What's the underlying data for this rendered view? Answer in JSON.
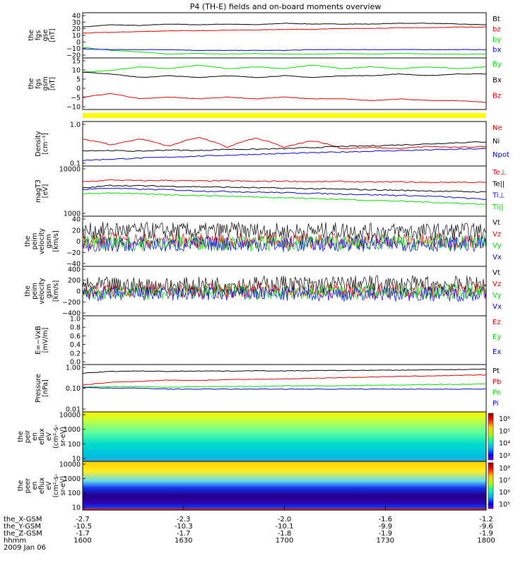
{
  "title": "P4 (TH-E) fields and on-board moments overview",
  "colors": {
    "black": "#000000",
    "red": "#e00000",
    "green": "#00dd00",
    "blue": "#0000dd",
    "yellow": "#ffff00"
  },
  "chart_data": [
    {
      "type": "line",
      "panel": "fgs_gse",
      "ylabel": [
        "the",
        "fgs",
        "gse",
        "[nT]"
      ],
      "yticks": [
        "40",
        "30",
        "20",
        "10",
        "0",
        "−10",
        "−20"
      ],
      "ylim": [
        -20,
        40
      ],
      "series": [
        {
          "name": "Bt",
          "color": "black",
          "y": [
            21,
            24,
            23,
            25,
            24,
            25,
            24,
            26,
            25,
            25,
            25,
            26,
            26,
            25,
            24
          ]
        },
        {
          "name": "bz",
          "color": "red",
          "y": [
            13,
            14,
            15,
            16,
            16,
            17,
            17,
            18,
            18,
            19,
            19,
            20,
            20,
            21,
            21
          ]
        },
        {
          "name": "by",
          "color": "green",
          "y": [
            -6,
            -10,
            -12,
            -15,
            -14,
            -15,
            -14,
            -15,
            -15,
            -14,
            -15,
            -14,
            -15,
            -15,
            -15
          ]
        },
        {
          "name": "bx",
          "color": "blue",
          "y": [
            -8,
            -9,
            -9,
            -9,
            -10,
            -10,
            -10,
            -10,
            -9,
            -9,
            -9,
            -9,
            -9,
            -9,
            -9
          ]
        }
      ]
    },
    {
      "type": "line",
      "panel": "fgs_gsm",
      "ylabel": [
        "the",
        "fgs",
        "gsm",
        "[nT]"
      ],
      "yticks": [
        "15",
        "10",
        "5",
        "0",
        "−5",
        "−10"
      ],
      "ylim": [
        -12,
        17
      ],
      "series": [
        {
          "name": "By",
          "color": "green",
          "y": [
            9,
            10,
            12,
            11,
            13,
            11,
            12,
            11,
            13,
            11,
            12,
            11,
            12,
            11,
            12
          ]
        },
        {
          "name": "Bx",
          "color": "black",
          "y": [
            9,
            8,
            6,
            7,
            6,
            7,
            6,
            7,
            6,
            7,
            7,
            8,
            7,
            8,
            8
          ]
        },
        {
          "name": "Bz",
          "color": "red",
          "y": [
            -5,
            -3,
            -6,
            -5,
            -6,
            -5,
            -6,
            -5,
            -6,
            -6,
            -7,
            -6,
            -7,
            -7,
            -8
          ]
        }
      ]
    },
    {
      "type": "line",
      "panel": "density",
      "ylabel": [
        "Density",
        "[cm⁻³]"
      ],
      "yticks": [
        "1.0",
        "0.1"
      ],
      "ylim": [
        0.1,
        1.4
      ],
      "scale": "log",
      "series": [
        {
          "name": "Ne",
          "color": "red",
          "y": [
            0.5,
            0.35,
            0.5,
            0.32,
            0.55,
            0.3,
            0.52,
            0.3,
            0.45,
            0.28,
            0.3,
            0.28,
            0.32,
            0.3,
            0.32
          ]
        },
        {
          "name": "Ni",
          "color": "black",
          "y": [
            0.25,
            0.25,
            0.24,
            0.26,
            0.25,
            0.27,
            0.27,
            0.28,
            0.3,
            0.32,
            0.33,
            0.35,
            0.37,
            0.4,
            0.42
          ]
        },
        {
          "name": "Npot",
          "color": "blue",
          "y": [
            0.14,
            0.15,
            0.16,
            0.17,
            0.18,
            0.19,
            0.2,
            0.21,
            0.22,
            0.23,
            0.24,
            0.25,
            0.26,
            0.27,
            0.28
          ]
        }
      ]
    },
    {
      "type": "line",
      "panel": "temperature",
      "ylabel": [
        "magT3",
        "[eV]"
      ],
      "yticks": [
        "10000",
        "1000"
      ],
      "ylim": [
        1000,
        12000
      ],
      "scale": "log",
      "legend": [
        "Te⊥",
        "Te||",
        "Ti⊥",
        "Ti||"
      ],
      "series": [
        {
          "name": "Te⊥",
          "color": "red",
          "y": [
            5500,
            6000,
            5800,
            5900,
            5700,
            5800,
            5600,
            5700,
            5500,
            5600,
            5400,
            5500,
            5300,
            5400,
            5300
          ]
        },
        {
          "name": "Te||",
          "color": "black",
          "y": [
            4000,
            4600,
            4500,
            4400,
            4300,
            4200,
            4100,
            4000,
            3900,
            3800,
            3700,
            3600,
            3500,
            3400,
            3300
          ]
        },
        {
          "name": "Ti⊥",
          "color": "blue",
          "y": [
            3800,
            4000,
            3800,
            3700,
            3500,
            3400,
            3300,
            3200,
            3100,
            3000,
            2900,
            2800,
            2700,
            2500,
            2300
          ]
        },
        {
          "name": "Ti||",
          "color": "green",
          "y": [
            3000,
            3200,
            3000,
            2900,
            2800,
            2700,
            2600,
            2500,
            2400,
            2300,
            2200,
            2100,
            2000,
            1900,
            1800
          ]
        }
      ]
    },
    {
      "type": "line",
      "panel": "peim_velocity",
      "ylabel": [
        "the",
        "peim",
        "velocity",
        "gsm",
        "[km/s]"
      ],
      "yticks": [
        "40",
        "20",
        "0",
        "−20",
        "−40"
      ],
      "ylim": [
        -40,
        40
      ],
      "series": [
        {
          "name": "Vt",
          "color": "black",
          "y": [
            15,
            18,
            16,
            17,
            15,
            17,
            16,
            15,
            16,
            17,
            15,
            16,
            15,
            16,
            15
          ]
        },
        {
          "name": "Vz",
          "color": "red",
          "y": [
            0,
            2,
            1,
            0,
            1,
            0,
            1,
            2,
            0,
            1,
            0,
            1,
            0,
            1,
            0
          ]
        },
        {
          "name": "Vy",
          "color": "green",
          "y": [
            -3,
            -2,
            -4,
            -3,
            -2,
            -3,
            -4,
            -3,
            -2,
            -3,
            -2,
            -3,
            -2,
            -3,
            -2
          ]
        },
        {
          "name": "Vx",
          "color": "blue",
          "y": [
            -5,
            -6,
            -5,
            -6,
            -5,
            -4,
            -5,
            -6,
            -5,
            -4,
            -5,
            -4,
            -5,
            -4,
            -5
          ]
        }
      ]
    },
    {
      "type": "line",
      "panel": "peim_velocity_2",
      "ylabel": [
        "the",
        "peim",
        "velocity",
        "gsm",
        "[km/s]"
      ],
      "yticks": [
        "400",
        "200",
        "0",
        "−200",
        "−400"
      ],
      "ylim": [
        -400,
        400
      ],
      "series": [
        {
          "name": "Vt",
          "color": "black",
          "y": [
            80,
            90,
            85,
            80,
            90,
            110,
            100,
            120,
            100,
            110,
            120,
            100,
            110,
            100,
            120
          ]
        },
        {
          "name": "Vz",
          "color": "red",
          "y": [
            0,
            10,
            0,
            10,
            0,
            10,
            0,
            10,
            0,
            10,
            0,
            10,
            0,
            10,
            0
          ]
        },
        {
          "name": "Vy",
          "color": "green",
          "y": [
            -20,
            -10,
            -20,
            -10,
            -20,
            -10,
            -20,
            -10,
            -20,
            -10,
            -20,
            -10,
            -20,
            -10,
            -20
          ]
        },
        {
          "name": "Vx",
          "color": "blue",
          "y": [
            -40,
            -50,
            -40,
            -50,
            -40,
            -50,
            -40,
            -50,
            -40,
            -50,
            -40,
            -50,
            -40,
            -50,
            -40
          ]
        }
      ]
    },
    {
      "type": "line",
      "panel": "efield",
      "ylabel": [
        "E=−VxB",
        "[mV/m]"
      ],
      "yticks": [
        "1.0",
        "0.8",
        "0.6",
        "0.4",
        "0.2",
        "0.0"
      ],
      "ylim": [
        0,
        1
      ],
      "series": [
        {
          "name": "Ez",
          "color": "red",
          "y": []
        },
        {
          "name": "Ey",
          "color": "green",
          "y": []
        },
        {
          "name": "Ex",
          "color": "blue",
          "y": []
        }
      ]
    },
    {
      "type": "line",
      "panel": "pressure",
      "ylabel": [
        "Pressure",
        "[nPa]"
      ],
      "yticks": [
        "1.00",
        "0.10",
        "0.01"
      ],
      "ylim": [
        0.01,
        1.2
      ],
      "scale": "log",
      "series": [
        {
          "name": "Pt",
          "color": "black",
          "y": [
            0.5,
            0.6,
            0.62,
            0.6,
            0.63,
            0.62,
            0.64,
            0.63,
            0.65,
            0.66,
            0.67,
            0.68,
            0.7,
            0.72,
            0.75
          ]
        },
        {
          "name": "Pb",
          "color": "red",
          "y": [
            0.15,
            0.2,
            0.22,
            0.25,
            0.24,
            0.26,
            0.27,
            0.28,
            0.3,
            0.32,
            0.34,
            0.36,
            0.38,
            0.4,
            0.42
          ]
        },
        {
          "name": "Pe",
          "color": "green",
          "y": [
            0.12,
            0.13,
            0.13,
            0.12,
            0.13,
            0.13,
            0.13,
            0.14,
            0.14,
            0.14,
            0.15,
            0.15,
            0.16,
            0.16,
            0.17
          ]
        },
        {
          "name": "Pi",
          "color": "blue",
          "y": [
            0.12,
            0.11,
            0.11,
            0.1,
            0.1,
            0.1,
            0.1,
            0.1,
            0.1,
            0.1,
            0.1,
            0.1,
            0.1,
            0.1,
            0.1
          ]
        }
      ]
    },
    {
      "type": "heatmap",
      "panel": "peir_spectrogram",
      "ylabel": [
        "the",
        "peir",
        "en",
        "eflux",
        "eV",
        "(cm²-s-",
        "sr-eV)"
      ],
      "yticks": [
        "10000",
        "1000",
        "100",
        "10"
      ],
      "ylim": [
        10,
        20000
      ],
      "scale": "log",
      "colorbar": {
        "ticks": [
          "10⁶",
          "10⁵",
          "10⁴",
          "10³"
        ]
      }
    },
    {
      "type": "heatmap",
      "panel": "peer_spectrogram",
      "ylabel": [
        "the",
        "peer",
        "en",
        "eflux",
        "eV",
        "(cm²-s-",
        "sr-eV)"
      ],
      "yticks": [
        "10000",
        "1000",
        "100",
        "10"
      ],
      "ylim": [
        10,
        20000
      ],
      "scale": "log",
      "colorbar": {
        "ticks": [
          "10⁸",
          "10⁷",
          "10⁶",
          "10⁵"
        ]
      }
    }
  ],
  "x_axis": {
    "rows": [
      {
        "label": "the_X-GSM",
        "values": [
          "-2.7",
          "-2.3",
          "-2.0",
          "-1.6",
          "-1.2"
        ]
      },
      {
        "label": "the_Y-GSM",
        "values": [
          "-10.5",
          "-10.3",
          "-10.1",
          "-9.9",
          "-9.6"
        ]
      },
      {
        "label": "the_Z-GSM",
        "values": [
          "-1.7",
          "-1.7",
          "-1.8",
          "-1.9",
          "-1.9"
        ]
      },
      {
        "label": "hhmm",
        "values": [
          "1600",
          "1630",
          "1700",
          "1730",
          "1800"
        ]
      }
    ],
    "date": "2009 Jan 06"
  }
}
